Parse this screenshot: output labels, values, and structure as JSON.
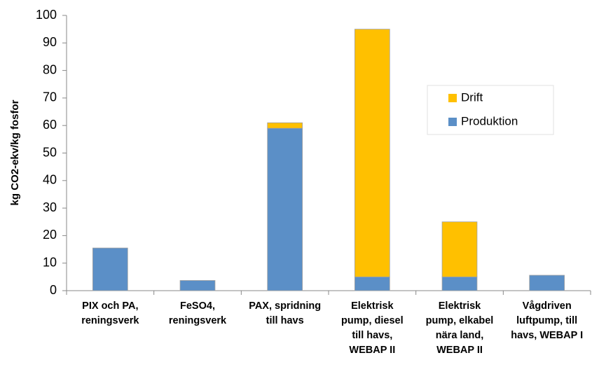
{
  "chart_data": {
    "type": "stacked_bar",
    "y_label": "kg CO2-ekv/kg fosfor",
    "categories": [
      "PIX och PA,\nreningsverk",
      "FeSO4,\nreningsverk",
      "PAX, spridning\ntill havs",
      "Elektrisk\npump, diesel\ntill havs,\nWEBAP II",
      "Elektrisk\npump, elkabel\nnära land,\nWEBAP II",
      "Vågdriven\nluftpump, till\nhavs, WEBAP I"
    ],
    "series": [
      {
        "name": "Produktion",
        "color": "#5b8fc7",
        "values": [
          15.5,
          3.7,
          59,
          5,
          5,
          5.6
        ]
      },
      {
        "name": "Drift",
        "color": "#ffc000",
        "values": [
          0,
          0,
          2,
          90,
          20,
          0
        ]
      }
    ],
    "ylim": [
      0,
      100
    ],
    "yticks": [
      0,
      10,
      20,
      30,
      40,
      50,
      60,
      70,
      80,
      90,
      100
    ],
    "grid": false,
    "legend": "right"
  }
}
